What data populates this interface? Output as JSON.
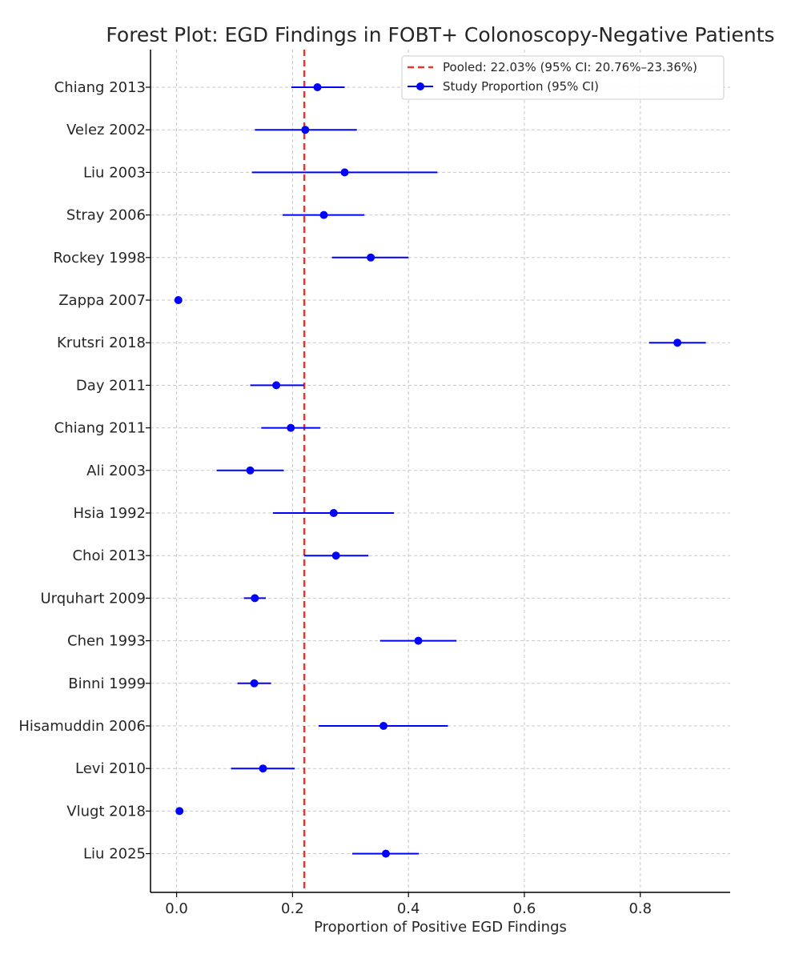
{
  "chart_data": {
    "type": "forest",
    "title": "Forest Plot: EGD Findings in FOBT+ Colonoscopy-Negative Patients",
    "xlabel": "Proportion of Positive EGD Findings",
    "ylabel": "",
    "xlim": [
      -0.045,
      0.955
    ],
    "x_ticks": [
      "0.0",
      "0.2",
      "0.4",
      "0.6",
      "0.8"
    ],
    "grid": true,
    "legend_position": "top-right",
    "colors": {
      "points": "#0000ff",
      "ci": "#0000ff",
      "pooled": "#e8342b"
    },
    "pooled": {
      "value": 0.2203,
      "label": "Pooled: 22.03% (95% CI: 20.76%–23.36%)"
    },
    "series_label": "Study Proportion (95% CI)",
    "studies": [
      {
        "name": "Chiang 2013",
        "value": 0.243,
        "lower": 0.198,
        "upper": 0.29
      },
      {
        "name": "Velez 2002",
        "value": 0.222,
        "lower": 0.135,
        "upper": 0.311
      },
      {
        "name": "Liu 2003",
        "value": 0.29,
        "lower": 0.13,
        "upper": 0.45
      },
      {
        "name": "Stray 2006",
        "value": 0.254,
        "lower": 0.183,
        "upper": 0.324
      },
      {
        "name": "Rockey 1998",
        "value": 0.335,
        "lower": 0.268,
        "upper": 0.4
      },
      {
        "name": "Zappa 2007",
        "value": 0.003,
        "lower": 0.0,
        "upper": 0.006
      },
      {
        "name": "Krutsri 2018",
        "value": 0.864,
        "lower": 0.815,
        "upper": 0.913
      },
      {
        "name": "Day 2011",
        "value": 0.172,
        "lower": 0.127,
        "upper": 0.22
      },
      {
        "name": "Chiang 2011",
        "value": 0.197,
        "lower": 0.146,
        "upper": 0.248
      },
      {
        "name": "Ali 2003",
        "value": 0.127,
        "lower": 0.069,
        "upper": 0.185
      },
      {
        "name": "Hsia 1992",
        "value": 0.271,
        "lower": 0.166,
        "upper": 0.375
      },
      {
        "name": "Choi 2013",
        "value": 0.275,
        "lower": 0.22,
        "upper": 0.331
      },
      {
        "name": "Urquhart 2009",
        "value": 0.135,
        "lower": 0.116,
        "upper": 0.154
      },
      {
        "name": "Chen 1993",
        "value": 0.417,
        "lower": 0.351,
        "upper": 0.483
      },
      {
        "name": "Binni 1999",
        "value": 0.134,
        "lower": 0.105,
        "upper": 0.163
      },
      {
        "name": "Hisamuddin 2006",
        "value": 0.357,
        "lower": 0.245,
        "upper": 0.468
      },
      {
        "name": "Levi 2010",
        "value": 0.149,
        "lower": 0.094,
        "upper": 0.204
      },
      {
        "name": "Vlugt 2018",
        "value": 0.005,
        "lower": 0.002,
        "upper": 0.008
      },
      {
        "name": "Liu 2025",
        "value": 0.361,
        "lower": 0.303,
        "upper": 0.418
      }
    ]
  }
}
